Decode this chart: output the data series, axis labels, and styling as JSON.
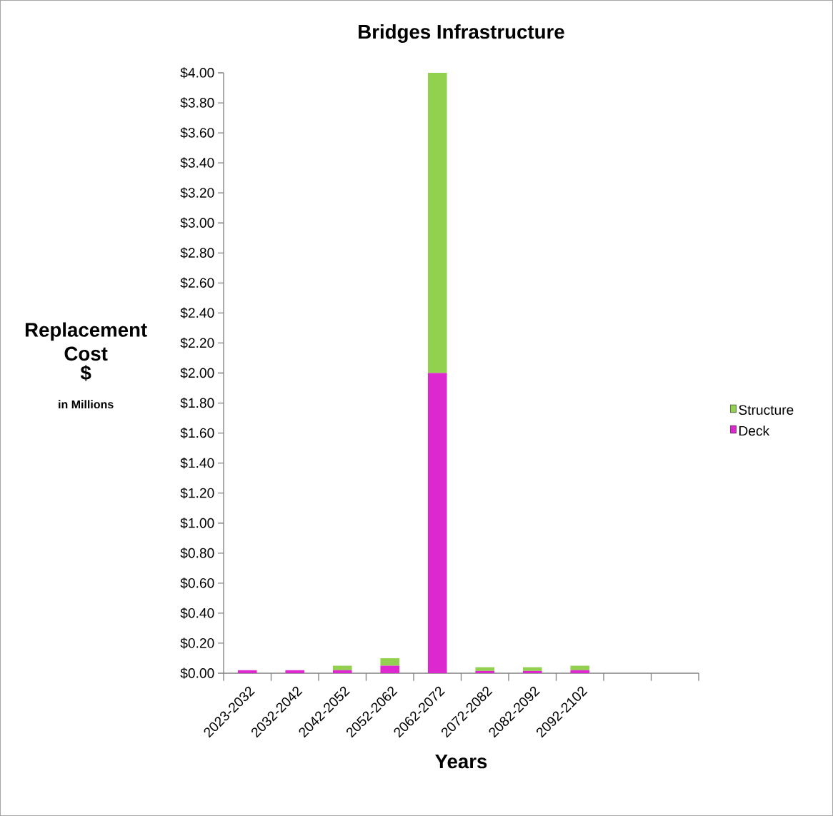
{
  "chart_data": {
    "type": "bar",
    "title": "Bridges Infrastructure",
    "xlabel": "Years",
    "ylabel": "Replacement Cost",
    "annotations": [
      "$",
      "in Millions"
    ],
    "categories": [
      "2023-2032",
      "2032-2042",
      "2042-2052",
      "2052-2062",
      "2062-2072",
      "2072-2082",
      "2082-2092",
      "2092-2102",
      null,
      null
    ],
    "stacked": true,
    "legend": "right",
    "series": [
      {
        "name": "Deck",
        "color": "#dd28d0",
        "values": [
          0.02,
          0.02,
          0.02,
          0.05,
          2.0,
          0.015,
          0.015,
          0.02,
          null,
          null
        ]
      },
      {
        "name": "Structure",
        "color": "#92d050",
        "values": [
          0,
          0,
          0.03,
          0.05,
          2.0,
          0.025,
          0.025,
          0.03,
          null,
          null
        ]
      }
    ],
    "ylim": [
      0,
      4
    ],
    "yticks": [
      {
        "value": 0,
        "label": "$0.00"
      },
      {
        "value": 0.2,
        "label": "$0.20"
      },
      {
        "value": 0.4,
        "label": "$0.40"
      },
      {
        "value": 0.6,
        "label": "$0.60"
      },
      {
        "value": 0.8,
        "label": "$0.80"
      },
      {
        "value": 1.0,
        "label": "$1.00"
      },
      {
        "value": 1.2,
        "label": "$1.20"
      },
      {
        "value": 1.4,
        "label": "$1.40"
      },
      {
        "value": 1.6,
        "label": "$1.60"
      },
      {
        "value": 1.8,
        "label": "$1.80"
      },
      {
        "value": 2.0,
        "label": "$2.00"
      },
      {
        "value": 2.2,
        "label": "$2.20"
      },
      {
        "value": 2.4,
        "label": "$2.40"
      },
      {
        "value": 2.6,
        "label": "$2.60"
      },
      {
        "value": 2.8,
        "label": "$2.80"
      },
      {
        "value": 3.0,
        "label": "$3.00"
      },
      {
        "value": 3.2,
        "label": "$3.20"
      },
      {
        "value": 3.4,
        "label": "$3.40"
      },
      {
        "value": 3.6,
        "label": "$3.60"
      },
      {
        "value": 3.8,
        "label": "$3.80"
      },
      {
        "value": 4.0,
        "label": "$4.00"
      }
    ]
  }
}
